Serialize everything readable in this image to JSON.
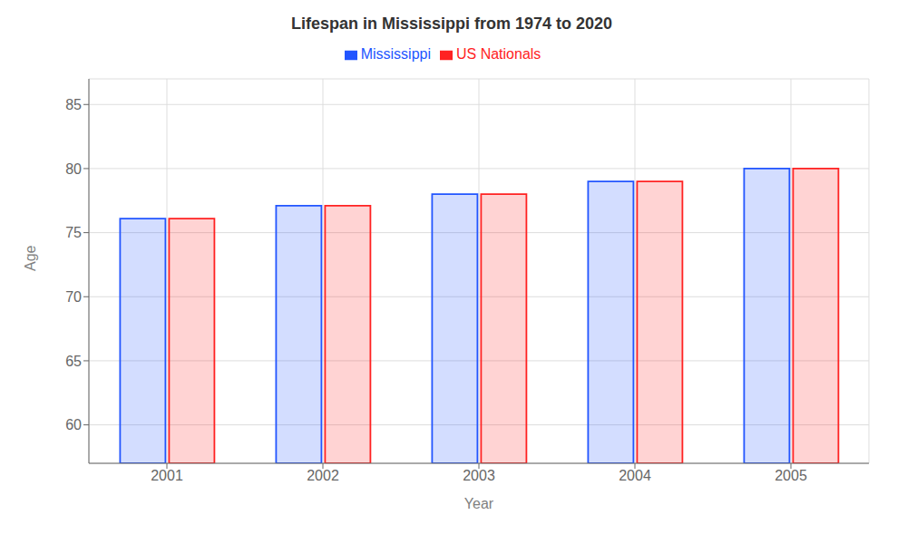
{
  "chart_data": {
    "type": "bar",
    "title": "Lifespan in Mississippi from 1974 to 2020",
    "xlabel": "Year",
    "ylabel": "Age",
    "categories": [
      "2001",
      "2002",
      "2003",
      "2004",
      "2005"
    ],
    "series": [
      {
        "name": "Mississippi",
        "color": "#2255ff",
        "values": [
          76.1,
          77.1,
          78.0,
          79.0,
          80.0
        ]
      },
      {
        "name": "US Nationals",
        "color": "#ff2222",
        "values": [
          76.1,
          77.1,
          78.0,
          79.0,
          80.0
        ]
      }
    ],
    "ylim": [
      57,
      87
    ],
    "yticks": [
      60,
      65,
      70,
      75,
      80,
      85
    ],
    "grid": true,
    "legend": "top"
  }
}
